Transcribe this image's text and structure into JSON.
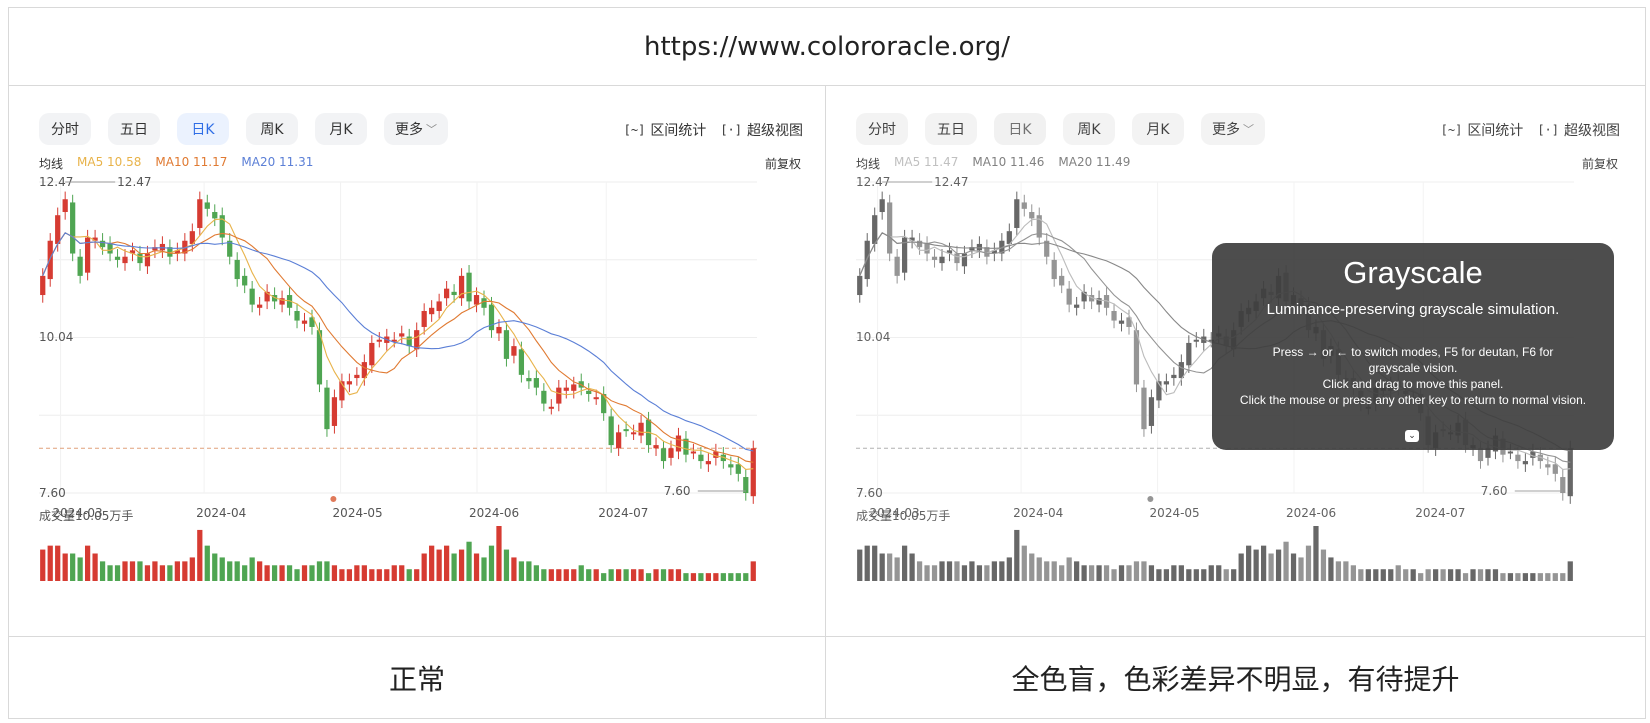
{
  "header": {
    "url": "https://www.colororacle.org/"
  },
  "captions": {
    "left": "正常",
    "right": "全色盲，色彩差异不明显，有待提升"
  },
  "tabs": [
    "分时",
    "五日",
    "日K",
    "周K",
    "月K",
    "更多"
  ],
  "active_tab": "日K",
  "tools": {
    "range_stats": "区间统计",
    "super_view": "超级视图",
    "range_icon": "[~]",
    "super_icon": "[·]"
  },
  "ma_label": "均线",
  "adjust": "前复权",
  "normal_panel": {
    "ma5": "MA5 10.58",
    "ma10": "MA10 11.17",
    "ma20": "MA20 11.31"
  },
  "gray_panel": {
    "ma5": "MA5 11.47",
    "ma10": "MA10 11.46",
    "ma20": "MA20 11.49"
  },
  "colors": {
    "up": "#d63b32",
    "down": "#4fa552",
    "ma5": "#e8b34a",
    "ma10": "#e07a32",
    "ma20": "#5b7fd6",
    "active_tab": "#2f6ee6",
    "overlay_bg": "#3e3e3e"
  },
  "overlay": {
    "title": "Grayscale",
    "subtitle": "Luminance-preserving grayscale simulation.",
    "help_lines": [
      "Press → or ← to switch modes, F5 for deutan, F6 for",
      "grayscale vision.",
      "Click and drag to move this panel.",
      "Click the mouse or press any other key to return to normal vision."
    ],
    "button": "⌄"
  },
  "chart_data": {
    "type": "candlestick",
    "title": "",
    "y_labels": [
      "12.47",
      "10.04",
      "7.60"
    ],
    "max_marker": "12.47",
    "min_marker": "7.60",
    "ylim": [
      7.6,
      12.47
    ],
    "x_labels": [
      "2024-03",
      "2024-04",
      "2024-05",
      "2024-06",
      "2024-07"
    ],
    "volume_label": "成交量10.05万手",
    "close": [
      11.0,
      11.55,
      11.95,
      12.2,
      11.35,
      11.0,
      11.6,
      11.6,
      11.45,
      11.35,
      11.25,
      11.3,
      11.4,
      11.2,
      11.35,
      11.45,
      11.5,
      11.3,
      11.4,
      11.55,
      11.7,
      12.2,
      12.05,
      11.9,
      11.6,
      11.3,
      10.95,
      10.85,
      10.55,
      10.55,
      10.75,
      10.6,
      10.65,
      10.5,
      10.3,
      10.3,
      10.2,
      9.3,
      8.6,
      9.1,
      9.35,
      9.35,
      9.45,
      9.65,
      9.95,
      10.0,
      10.05,
      10.0,
      10.1,
      9.9,
      10.15,
      10.45,
      10.5,
      10.6,
      10.8,
      10.7,
      11.0,
      10.6,
      10.7,
      10.5,
      10.15,
      10.2,
      9.7,
      9.9,
      9.45,
      9.35,
      9.25,
      9.0,
      8.95,
      9.25,
      9.25,
      9.3,
      9.25,
      9.15,
      9.1,
      8.85,
      8.35,
      8.55,
      8.6,
      8.55,
      8.7,
      8.35,
      8.35,
      8.1,
      8.3,
      8.5,
      8.2,
      8.25,
      8.1,
      8.1,
      8.25,
      8.1,
      8.0,
      7.9,
      7.6,
      8.3
    ],
    "volume": [
      8,
      9,
      9,
      7,
      7,
      6,
      9,
      7,
      5,
      4,
      4,
      5,
      5,
      5,
      4,
      5,
      4,
      4,
      5,
      5,
      6,
      13,
      9,
      7,
      6,
      5,
      5,
      4,
      6,
      5,
      4,
      4,
      4,
      4,
      3,
      4,
      4,
      5,
      5,
      4,
      3,
      3,
      4,
      4,
      3,
      3,
      3,
      4,
      4,
      3,
      3,
      7,
      9,
      8,
      9,
      7,
      8,
      10,
      7,
      6,
      9,
      14,
      8,
      6,
      5,
      5,
      4,
      3,
      3,
      3,
      3,
      3,
      4,
      3,
      3,
      2,
      3,
      3,
      3,
      3,
      3,
      2,
      3,
      3,
      3,
      3,
      2,
      2,
      2,
      2,
      2,
      2,
      2,
      2,
      2,
      5
    ]
  }
}
